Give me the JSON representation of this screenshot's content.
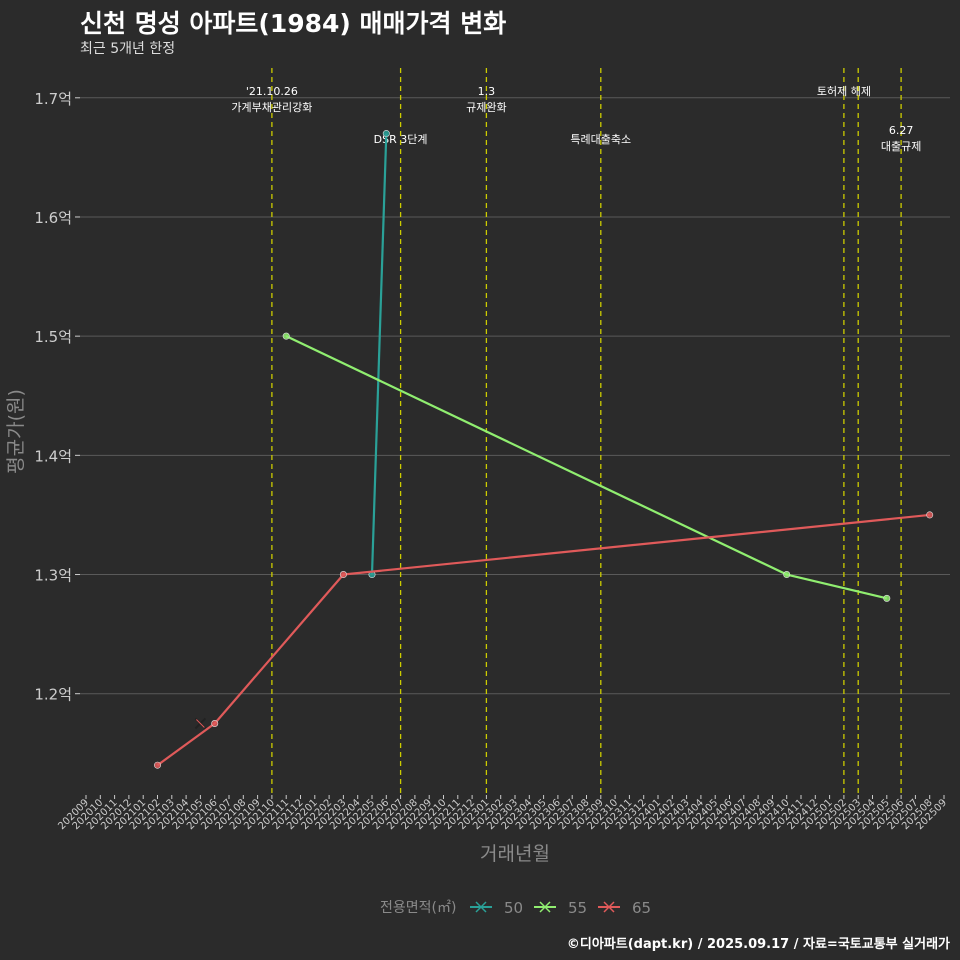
{
  "title": "신천 명성 아파트(1984) 매매가격 변화",
  "subtitle": "최근 5개년 한정",
  "caption": "©디아파트(dapt.kr) / 2025.09.17 / 자료=국토교통부 실거래가",
  "colors": {
    "background": "#2b2b2b",
    "grid": "#5a5a5a",
    "event_line": "#cccc00",
    "axis_text": "#cccccc",
    "axis_title": "#8a8a8a"
  },
  "chart_data": {
    "type": "line",
    "xlabel": "거래년월",
    "ylabel": "평균가(원)",
    "x_months": [
      "202009",
      "202010",
      "202011",
      "202012",
      "202101",
      "202102",
      "202103",
      "202104",
      "202105",
      "202106",
      "202107",
      "202108",
      "202109",
      "202110",
      "202111",
      "202112",
      "202201",
      "202202",
      "202203",
      "202204",
      "202205",
      "202206",
      "202207",
      "202208",
      "202209",
      "202210",
      "202211",
      "202212",
      "202301",
      "202302",
      "202303",
      "202304",
      "202305",
      "202306",
      "202307",
      "202308",
      "202309",
      "202310",
      "202311",
      "202312",
      "202401",
      "202402",
      "202403",
      "202404",
      "202405",
      "202406",
      "202407",
      "202408",
      "202409",
      "202410",
      "202411",
      "202412",
      "202501",
      "202502",
      "202503",
      "202504",
      "202505",
      "202506",
      "202507",
      "202508",
      "202509"
    ],
    "y_ticks": [
      1.2,
      1.3,
      1.4,
      1.5,
      1.6,
      1.7
    ],
    "y_tick_labels": [
      "1.2억",
      "1.3억",
      "1.4억",
      "1.5억",
      "1.6억",
      "1.7억"
    ],
    "ylim": [
      1.115,
      1.725
    ],
    "grid": true,
    "legend": {
      "title": "전용면적(㎡)",
      "position": "bottom",
      "entries": [
        "50",
        "55",
        "65"
      ]
    },
    "series": [
      {
        "name": "50",
        "color": "#2aa198",
        "points": [
          {
            "x": "202205",
            "y": 1.3
          },
          {
            "x": "202206",
            "y": 1.67
          }
        ]
      },
      {
        "name": "55",
        "color": "#90ee70",
        "points": [
          {
            "x": "202111",
            "y": 1.5
          },
          {
            "x": "202410",
            "y": 1.3
          },
          {
            "x": "202505",
            "y": 1.28
          }
        ]
      },
      {
        "name": "65",
        "color": "#e05a5a",
        "points": [
          {
            "x": "202102",
            "y": 1.14
          },
          {
            "x": "202106",
            "y": 1.175
          },
          {
            "x": "202203",
            "y": 1.3
          },
          {
            "x": "202508",
            "y": 1.35
          }
        ]
      }
    ],
    "cross_markers": [
      {
        "series": "65",
        "x": "202105",
        "y": 1.175
      }
    ],
    "events": [
      {
        "x": "202110",
        "lines": [
          "'21.10.26",
          "가계부채관리강화"
        ],
        "level": 1
      },
      {
        "x": "202207",
        "lines": [
          "DSR 3단계"
        ],
        "level": 2
      },
      {
        "x": "202301",
        "lines": [
          "1.3",
          "규제완화"
        ],
        "level": 1
      },
      {
        "x": "202309",
        "lines": [
          "특례대출축소"
        ],
        "level": 2
      },
      {
        "x": "202502",
        "lines": [
          "토허제 해제"
        ],
        "level": 1
      },
      {
        "x": "202503",
        "lines": [],
        "level": 1
      },
      {
        "x": "202506",
        "lines": [
          "6.27",
          "대출규제"
        ],
        "level": 3
      }
    ]
  }
}
